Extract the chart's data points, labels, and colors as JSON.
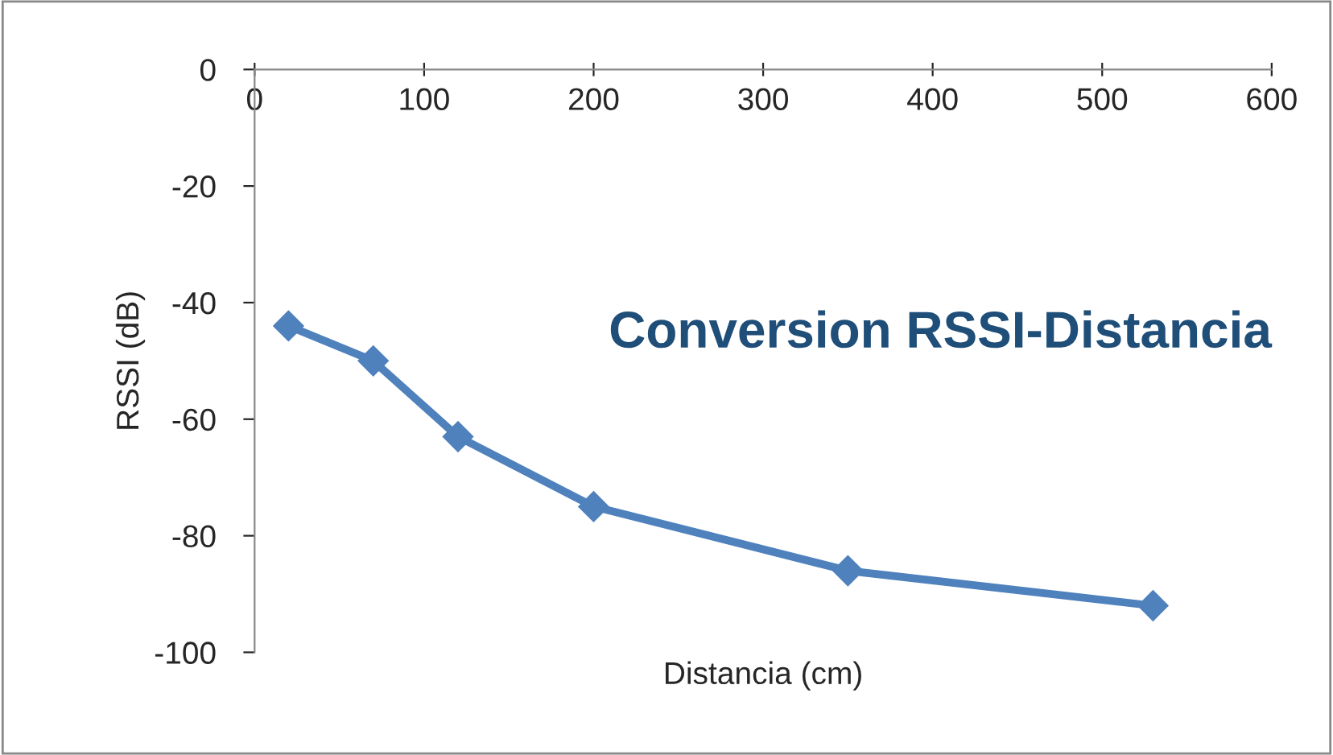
{
  "chart_data": {
    "type": "line",
    "title": "Conversion RSSI-Distancia",
    "xlabel": "Distancia (cm)",
    "ylabel": "RSSI (dB)",
    "x": [
      20,
      70,
      120,
      200,
      350,
      530
    ],
    "series": [
      {
        "color": "#4f81bd",
        "values": [
          -44,
          -50,
          -63,
          -75,
          -86,
          -92
        ]
      }
    ],
    "xlim": [
      0,
      600
    ],
    "xticks": [
      0,
      100,
      200,
      300,
      400,
      500,
      600
    ],
    "ylim": [
      -100,
      0
    ],
    "yticks": [
      -100,
      -80,
      -60,
      -40,
      -20,
      0
    ],
    "marker": "diamond",
    "line_style": "solid",
    "grid": false,
    "legend": false
  }
}
